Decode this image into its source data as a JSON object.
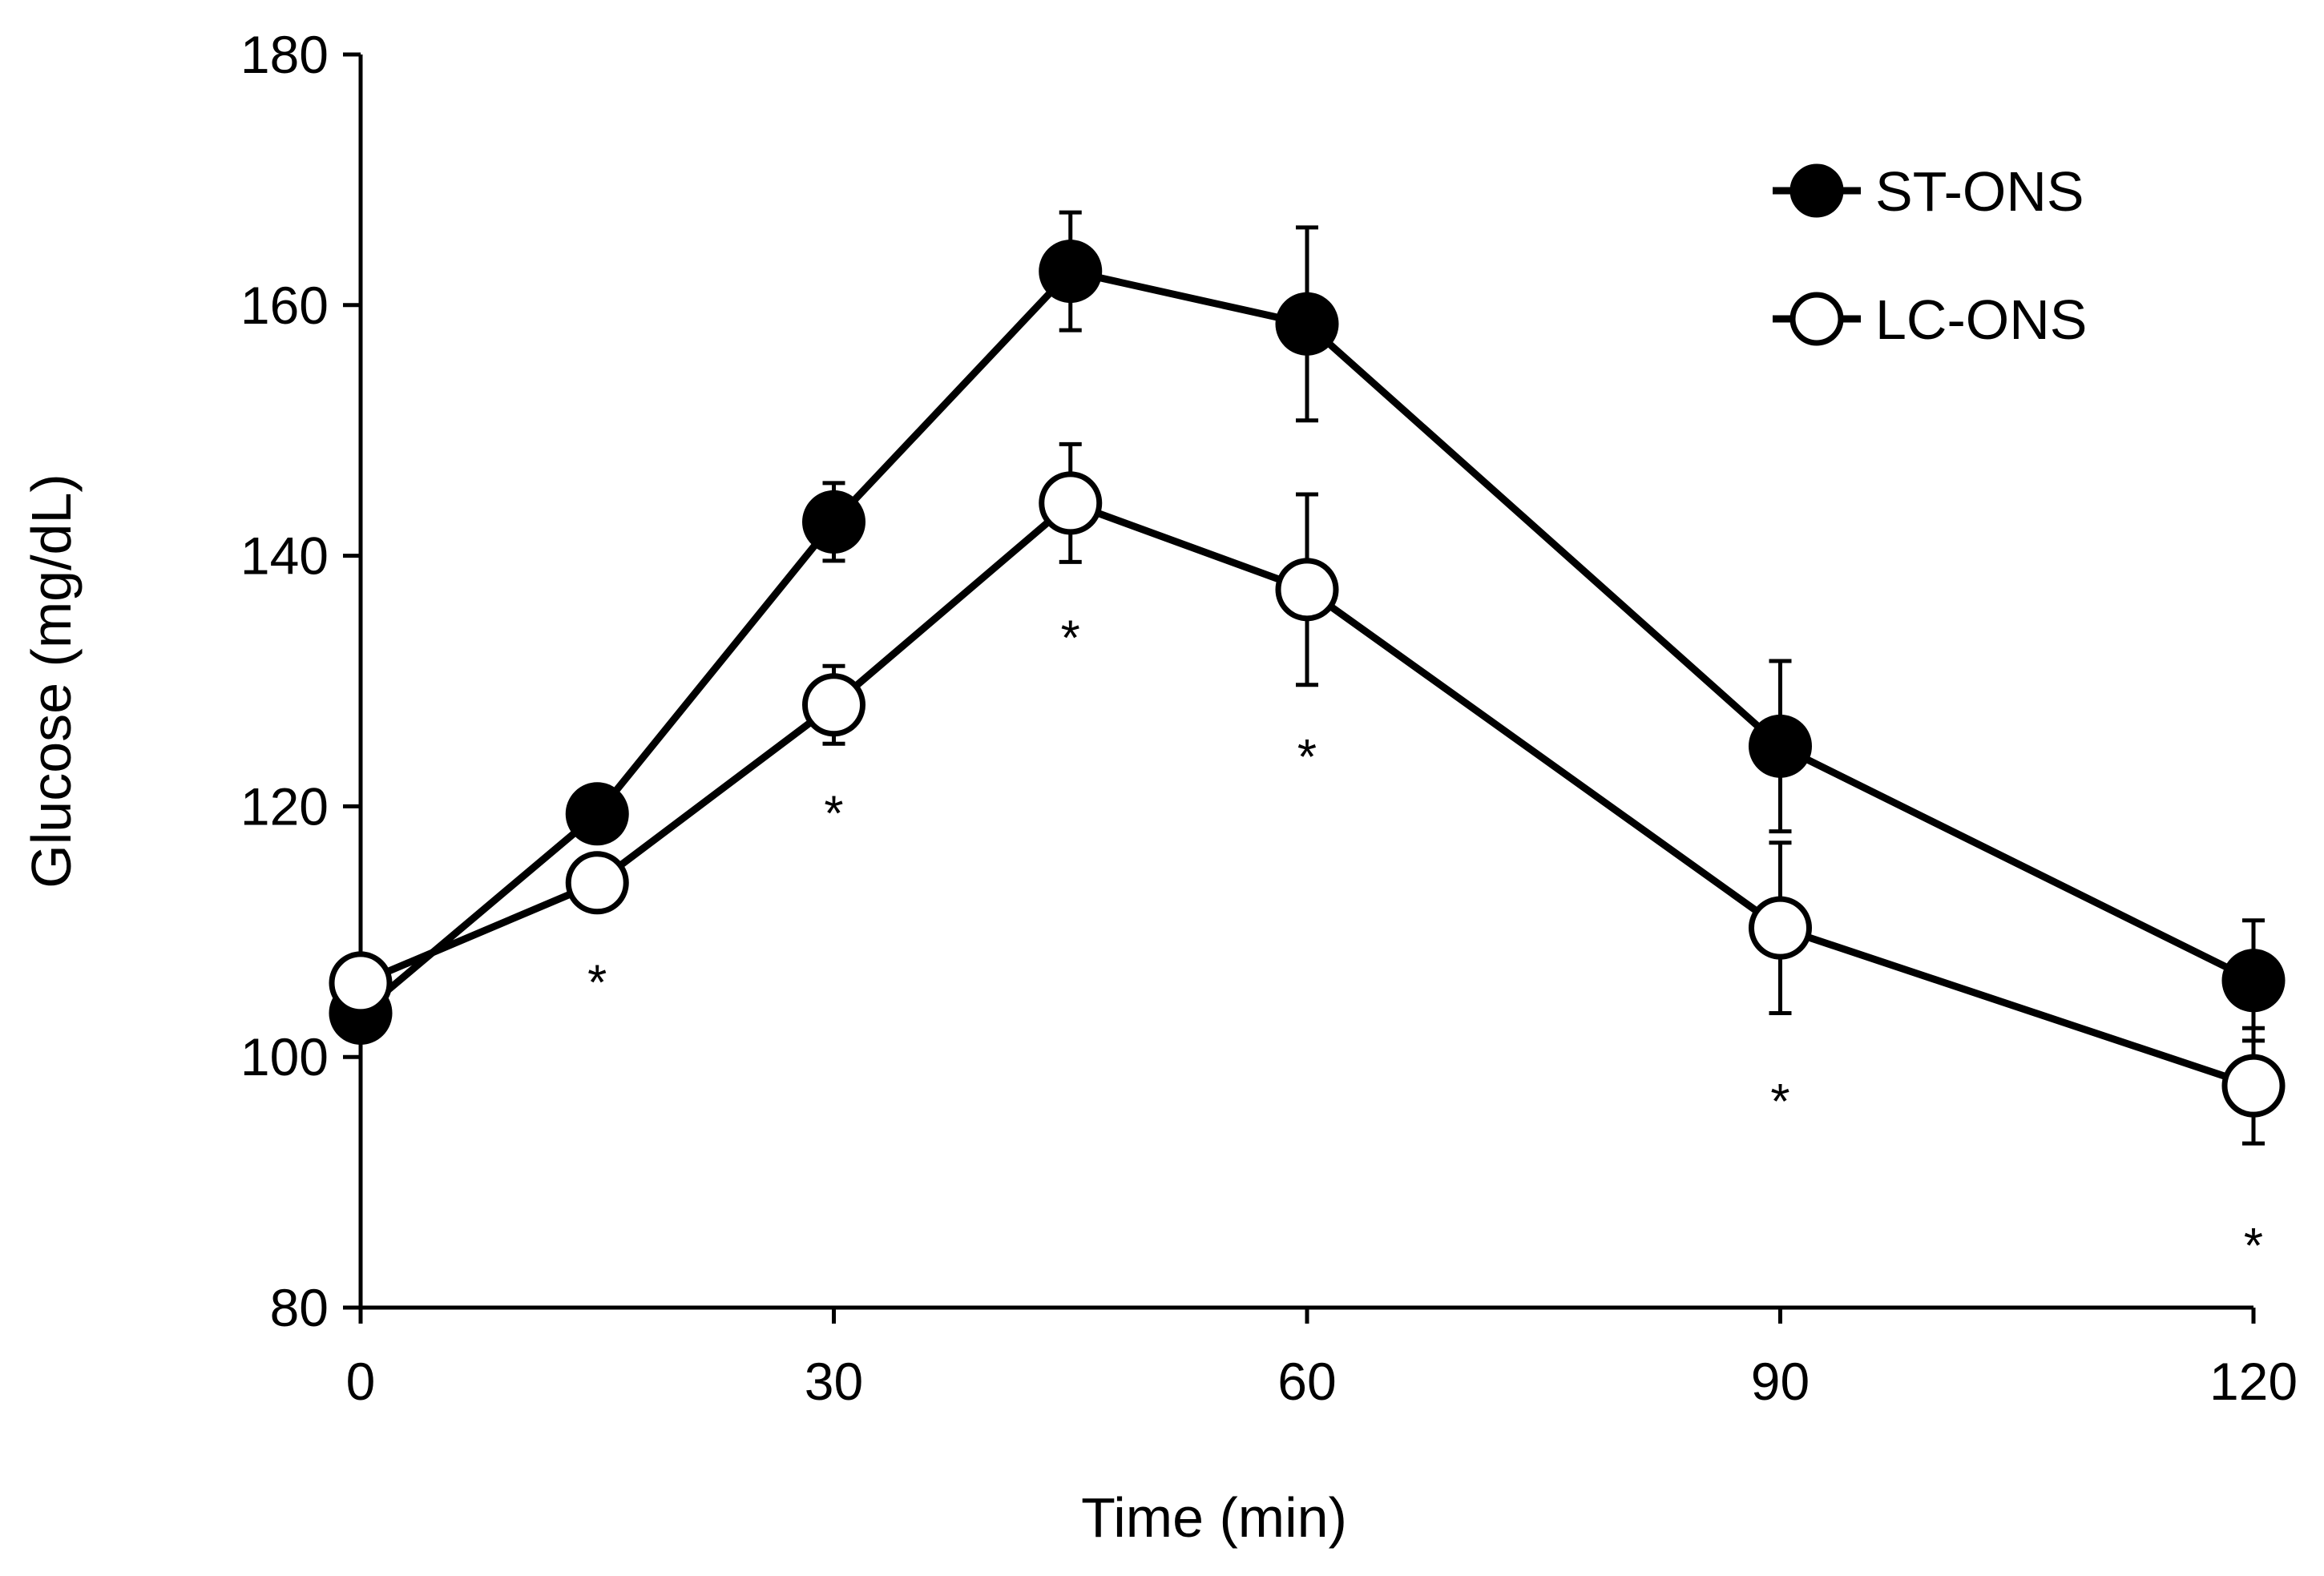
{
  "chart_data": {
    "type": "line",
    "title": "",
    "xlabel": "Time (min)",
    "ylabel": "Glucose (mg/dL)",
    "xlim": [
      0,
      120
    ],
    "ylim": [
      80,
      180
    ],
    "xticks": [
      0,
      30,
      60,
      90,
      120
    ],
    "yticks": [
      80,
      100,
      120,
      140,
      160,
      180
    ],
    "grid": false,
    "legend_position": "top-right",
    "x": [
      0,
      15,
      30,
      45,
      60,
      90,
      120
    ],
    "series": [
      {
        "name": "ST-ONS",
        "marker": "filled-circle",
        "color": "#000000",
        "values": [
          103.5,
          119.4,
          142.7,
          162.7,
          158.5,
          124.8,
          106.1
        ],
        "error": [
          2.0,
          2.0,
          3.1,
          4.7,
          7.7,
          6.8,
          4.8
        ]
      },
      {
        "name": "LC-ONS",
        "marker": "open-circle",
        "color": "#000000",
        "values": [
          105.9,
          113.9,
          128.1,
          144.2,
          137.3,
          110.3,
          97.7
        ],
        "error": [
          2.0,
          2.2,
          3.1,
          4.7,
          7.6,
          6.8,
          4.6
        ]
      }
    ],
    "annotations": [
      {
        "x": 15,
        "y": 106.5,
        "text": "*"
      },
      {
        "x": 30,
        "y": 120.0,
        "text": "*"
      },
      {
        "x": 45,
        "y": 134.0,
        "text": "*"
      },
      {
        "x": 60,
        "y": 124.5,
        "text": "*"
      },
      {
        "x": 90,
        "y": 97.0,
        "text": "*"
      },
      {
        "x": 120,
        "y": 85.5,
        "text": "*"
      }
    ]
  }
}
